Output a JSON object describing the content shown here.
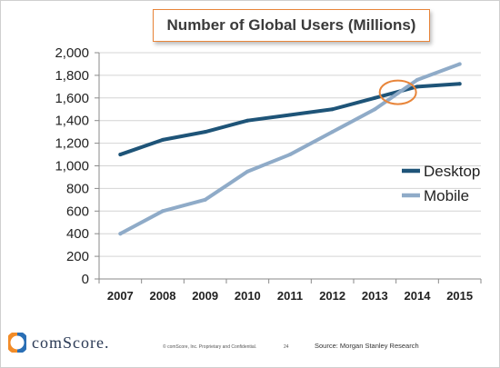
{
  "chart_data": {
    "type": "line",
    "title": "Number of Global Users (Millions)",
    "x": [
      "2007",
      "2008",
      "2009",
      "2010",
      "2011",
      "2012",
      "2013",
      "2014",
      "2015"
    ],
    "y_ticks": [
      "0",
      "200",
      "400",
      "600",
      "800",
      "1,000",
      "1,200",
      "1,400",
      "1,600",
      "1,800",
      "2,000"
    ],
    "ylim": [
      0,
      2000
    ],
    "grid": true,
    "legend_position": "right",
    "series": [
      {
        "name": "Desktop",
        "color": "#1e5478",
        "values": [
          1100,
          1230,
          1300,
          1400,
          1450,
          1500,
          1600,
          1700,
          1725
        ]
      },
      {
        "name": "Mobile",
        "color": "#8fabc8",
        "values": [
          400,
          600,
          700,
          950,
          1100,
          1300,
          1500,
          1760,
          1900
        ]
      }
    ],
    "annotation": {
      "type": "crossover-circle",
      "color": "#e8853a"
    }
  },
  "footer": {
    "brand": "comScore.",
    "confidential": "© comScore, Inc.  Proprietary and Confidential.",
    "page": "24",
    "source": "Source: Morgan Stanley Research"
  }
}
